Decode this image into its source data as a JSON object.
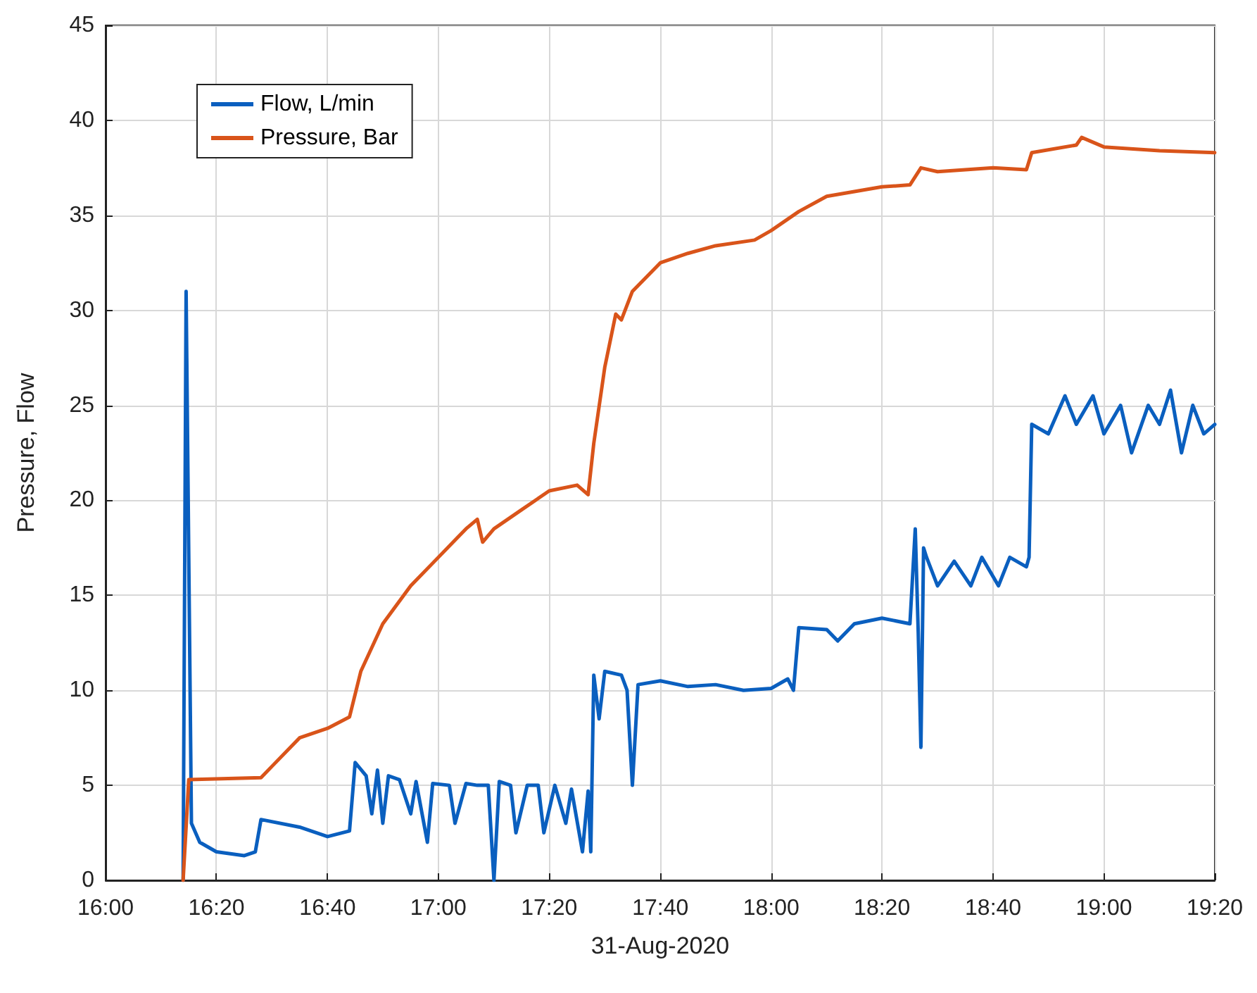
{
  "chart_data": {
    "type": "line",
    "xlabel": "31-Aug-2020",
    "ylabel": "Pressure, Flow",
    "xlim": [
      16,
      19.333
    ],
    "xticks": [
      {
        "value": 16,
        "label": "16:00"
      },
      {
        "value": 16.333,
        "label": "16:20"
      },
      {
        "value": 16.667,
        "label": "16:40"
      },
      {
        "value": 17,
        "label": "17:00"
      },
      {
        "value": 17.333,
        "label": "17:20"
      },
      {
        "value": 17.667,
        "label": "17:40"
      },
      {
        "value": 18,
        "label": "18:00"
      },
      {
        "value": 18.333,
        "label": "18:20"
      },
      {
        "value": 18.667,
        "label": "18:40"
      },
      {
        "value": 19,
        "label": "19:00"
      },
      {
        "value": 19.333,
        "label": "19:20"
      }
    ],
    "ylim": [
      0,
      45
    ],
    "yticks": [
      0,
      5,
      10,
      15,
      20,
      25,
      30,
      35,
      40,
      45
    ],
    "grid": true,
    "legend": "top left",
    "marker": "none",
    "line_style": "solid",
    "series": [
      {
        "name": "Flow, L/min",
        "color": "#0a5fbf",
        "x": [
          16.233,
          16.242,
          16.258,
          16.283,
          16.333,
          16.417,
          16.45,
          16.467,
          16.583,
          16.667,
          16.733,
          16.75,
          16.783,
          16.8,
          16.817,
          16.833,
          16.85,
          16.883,
          16.917,
          16.933,
          16.967,
          16.983,
          17.033,
          17.05,
          17.083,
          17.117,
          17.15,
          17.167,
          17.183,
          17.217,
          17.233,
          17.267,
          17.3,
          17.317,
          17.35,
          17.383,
          17.4,
          17.433,
          17.45,
          17.458,
          17.467,
          17.483,
          17.5,
          17.55,
          17.567,
          17.583,
          17.6,
          17.667,
          17.75,
          17.833,
          17.917,
          18,
          18.05,
          18.067,
          18.083,
          18.167,
          18.2,
          18.25,
          18.333,
          18.417,
          18.433,
          18.442,
          18.45,
          18.458,
          18.467,
          18.5,
          18.55,
          18.6,
          18.633,
          18.683,
          18.717,
          18.767,
          18.775,
          18.783,
          18.833,
          18.883,
          18.917,
          18.967,
          19,
          19.05,
          19.083,
          19.133,
          19.167,
          19.2,
          19.233,
          19.267,
          19.3,
          19.333
        ],
        "values": [
          0,
          31,
          3,
          2,
          1.5,
          1.3,
          1.5,
          3.2,
          2.8,
          2.3,
          2.6,
          6.2,
          5.5,
          3.5,
          5.8,
          3,
          5.5,
          5.3,
          3.5,
          5.2,
          2,
          5.1,
          5,
          3,
          5.1,
          5,
          5,
          0,
          5.2,
          5,
          2.5,
          5,
          5,
          2.5,
          5,
          3,
          4.8,
          1.5,
          4.7,
          1.5,
          10.8,
          8.5,
          11,
          10.8,
          10,
          5,
          10.3,
          10.5,
          10.2,
          10.3,
          10,
          10.1,
          10.6,
          10,
          13.3,
          13.2,
          12.6,
          13.5,
          13.8,
          13.5,
          18.5,
          13,
          7,
          17.5,
          17,
          15.5,
          16.8,
          15.5,
          17,
          15.5,
          17,
          16.5,
          17,
          24,
          23.5,
          25.5,
          24,
          25.5,
          23.5,
          25,
          22.5,
          25,
          24,
          25.8,
          22.5,
          25,
          23.5,
          24
        ]
      },
      {
        "name": "Pressure, Bar",
        "color": "#d9541a",
        "x": [
          16.233,
          16.25,
          16.467,
          16.5,
          16.583,
          16.667,
          16.733,
          16.767,
          16.833,
          16.917,
          17,
          17.083,
          17.117,
          17.133,
          17.167,
          17.25,
          17.333,
          17.417,
          17.45,
          17.467,
          17.5,
          17.533,
          17.55,
          17.583,
          17.667,
          17.75,
          17.833,
          17.95,
          18,
          18.083,
          18.167,
          18.333,
          18.417,
          18.45,
          18.5,
          18.667,
          18.767,
          18.783,
          18.917,
          18.933,
          19,
          19.167,
          19.333
        ],
        "values": [
          0,
          5.3,
          5.4,
          6,
          7.5,
          8,
          8.6,
          11,
          13.5,
          15.5,
          17,
          18.5,
          19,
          17.8,
          18.5,
          19.5,
          20.5,
          20.8,
          20.3,
          23,
          27,
          29.8,
          29.5,
          31,
          32.5,
          33,
          33.4,
          33.7,
          34.2,
          35.2,
          36,
          36.5,
          36.6,
          37.5,
          37.3,
          37.5,
          37.4,
          38.3,
          38.7,
          39.1,
          38.6,
          38.4,
          38.3
        ]
      }
    ]
  }
}
